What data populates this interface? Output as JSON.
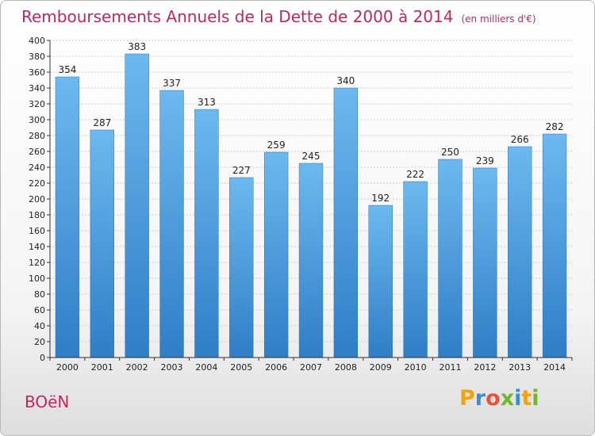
{
  "title": "Remboursements Annuels de la Dette de 2000 à 2014",
  "subtitle": "(en milliers d'€)",
  "town": "BOëN",
  "logo": {
    "letters": [
      "P",
      "r",
      "o",
      "x",
      "i",
      "t",
      "i"
    ],
    "colors": [
      "#f2a20f",
      "#3b8dd8",
      "#e8513b",
      "#6fb82c",
      "#3b8dd8",
      "#f2a20f",
      "#6fb82c"
    ]
  },
  "colors": {
    "title": "#c1275f",
    "bar_top": "#6cb9f0",
    "bar_bottom": "#2f7ec6",
    "grid": "#cfcfcf"
  },
  "chart_data": {
    "type": "bar",
    "categories": [
      "2000",
      "2001",
      "2002",
      "2003",
      "2004",
      "2005",
      "2006",
      "2007",
      "2008",
      "2009",
      "2010",
      "2011",
      "2012",
      "2013",
      "2014"
    ],
    "values": [
      354,
      287,
      383,
      337,
      313,
      227,
      259,
      245,
      340,
      192,
      222,
      250,
      239,
      266,
      282
    ],
    "title": "Remboursements Annuels de la Dette de 2000 à 2014",
    "xlabel": "",
    "ylabel": "",
    "ylim": [
      0,
      400
    ],
    "yticks": [
      0,
      20,
      40,
      60,
      80,
      100,
      120,
      140,
      160,
      180,
      200,
      220,
      240,
      260,
      280,
      300,
      320,
      340,
      360,
      380,
      400
    ],
    "grid": true,
    "data_labels": true
  }
}
